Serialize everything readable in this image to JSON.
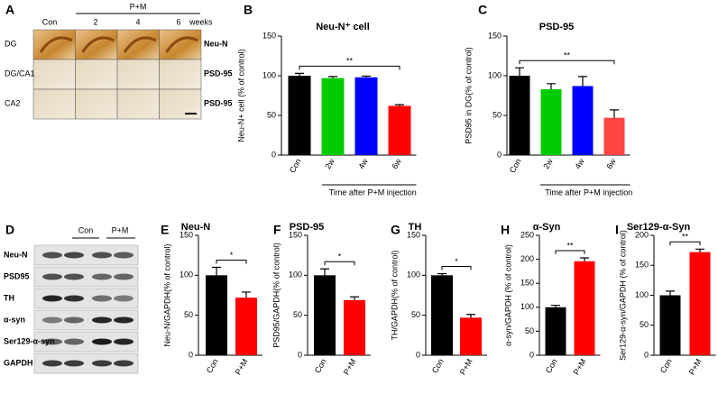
{
  "panel_a": {
    "letter": "A",
    "control": "Con",
    "treatment": "P+M",
    "weeks": [
      "2",
      "4",
      "6"
    ],
    "unit": "weeks",
    "rows": [
      "DG",
      "DG/CA1",
      "CA2"
    ],
    "stains": [
      "Neu-N",
      "PSD-95",
      "PSD-95"
    ]
  },
  "panel_d": {
    "letter": "D",
    "control": "Con",
    "treatment": "P+M",
    "rows": [
      "Neu-N",
      "PSD95",
      "TH",
      "α-syn",
      "Ser129-α-syn",
      "GAPDH"
    ]
  },
  "chart_data": [
    {
      "type": "bar",
      "panel": "B",
      "title": "Neu-N⁺ cell",
      "ylabel": "Neu-N+ cell (% of control)",
      "xlabel": "Time after P+M injection",
      "categories": [
        "Con",
        "2w",
        "4w",
        "6w"
      ],
      "values": [
        100,
        97,
        98,
        62
      ],
      "errors": [
        3,
        2,
        1.5,
        1.5
      ],
      "colors": [
        "#000000",
        "#00cc00",
        "#0000ff",
        "#ff0000"
      ],
      "ylim": [
        0,
        150
      ],
      "yticks": [
        0,
        50,
        100,
        150
      ],
      "significance": {
        "label": "**",
        "between": [
          "Con",
          "6w"
        ]
      }
    },
    {
      "type": "bar",
      "panel": "C",
      "title": "PSD-95",
      "ylabel": "PSD95 in DG(% of control)",
      "xlabel": "Time after P+M injection",
      "categories": [
        "Con",
        "2w",
        "4w",
        "6w"
      ],
      "values": [
        100,
        83,
        87,
        47
      ],
      "errors": [
        10,
        7,
        12,
        10
      ],
      "colors": [
        "#000000",
        "#00cc00",
        "#0000ff",
        "#ff4444"
      ],
      "ylim": [
        0,
        150
      ],
      "yticks": [
        0,
        50,
        100,
        150
      ],
      "significance": {
        "label": "**",
        "between": [
          "Con",
          "6w"
        ]
      }
    },
    {
      "type": "bar",
      "panel": "E",
      "title": "Neu-N",
      "ylabel": "Neu-N/GAPDH(% of control)",
      "categories": [
        "Con",
        "P+M"
      ],
      "values": [
        100,
        72
      ],
      "errors": [
        10,
        7
      ],
      "colors": [
        "#000000",
        "#ff0000"
      ],
      "ylim": [
        0,
        150
      ],
      "yticks": [
        0,
        50,
        100,
        150
      ],
      "significance": {
        "label": "*",
        "between": [
          "Con",
          "P+M"
        ]
      }
    },
    {
      "type": "bar",
      "panel": "F",
      "title": "PSD-95",
      "ylabel": "PSD95/GAPDH(% of control)",
      "categories": [
        "Con",
        "P+M"
      ],
      "values": [
        100,
        69
      ],
      "errors": [
        8,
        4
      ],
      "colors": [
        "#000000",
        "#ff0000"
      ],
      "ylim": [
        0,
        150
      ],
      "yticks": [
        0,
        50,
        100,
        150
      ],
      "significance": {
        "label": "*",
        "between": [
          "Con",
          "P+M"
        ]
      }
    },
    {
      "type": "bar",
      "panel": "G",
      "title": "TH",
      "ylabel": "TH/GAPDH(% of control)",
      "categories": [
        "Con",
        "P+M"
      ],
      "values": [
        100,
        47
      ],
      "errors": [
        2,
        4
      ],
      "colors": [
        "#000000",
        "#ff0000"
      ],
      "ylim": [
        0,
        150
      ],
      "yticks": [
        0,
        50,
        100,
        150
      ],
      "significance": {
        "label": "*",
        "between": [
          "Con",
          "P+M"
        ]
      }
    },
    {
      "type": "bar",
      "panel": "H",
      "title": "α-Syn",
      "ylabel": "α-syn/GAPDH (% of control)",
      "categories": [
        "Con",
        "P+M"
      ],
      "values": [
        100,
        196
      ],
      "errors": [
        4,
        7
      ],
      "colors": [
        "#000000",
        "#ff0000"
      ],
      "ylim": [
        0,
        250
      ],
      "yticks": [
        0,
        50,
        100,
        150,
        200,
        250
      ],
      "significance": {
        "label": "**",
        "between": [
          "Con",
          "P+M"
        ]
      }
    },
    {
      "type": "bar",
      "panel": "I",
      "title": "Ser129-α-Syn",
      "ylabel": "Ser129-α-syn/GAPDH (% of control)",
      "categories": [
        "Con",
        "P+M"
      ],
      "values": [
        100,
        172
      ],
      "errors": [
        7,
        5
      ],
      "colors": [
        "#000000",
        "#ff0000"
      ],
      "ylim": [
        0,
        200
      ],
      "yticks": [
        0,
        50,
        100,
        150,
        200
      ],
      "significance": {
        "label": "**",
        "between": [
          "Con",
          "P+M"
        ]
      }
    }
  ]
}
